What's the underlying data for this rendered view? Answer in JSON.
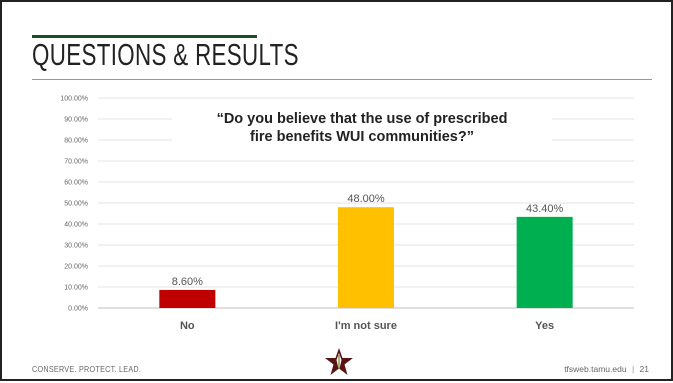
{
  "slide": {
    "title": "QUESTIONS & RESULTS",
    "footer_left": "CONSERVE. PROTECT. LEAD.",
    "footer_url": "tfsweb.tamu.edu",
    "footer_separator": "|",
    "page_number": "21"
  },
  "chart_data": {
    "type": "bar",
    "title": "“Do you believe that the use of prescribed fire benefits WUI communities?”",
    "title_lines": [
      "“Do you believe that the use of prescribed",
      "fire benefits WUI communities?”"
    ],
    "categories": [
      "No",
      "I'm not sure",
      "Yes"
    ],
    "values": [
      8.6,
      48.0,
      43.4
    ],
    "data_labels": [
      "8.60%",
      "48.00%",
      "43.40%"
    ],
    "colors": [
      "#c00000",
      "#ffc000",
      "#00b050"
    ],
    "ylim": [
      0,
      100
    ],
    "yticks": [
      "0.00%",
      "10.00%",
      "20.00%",
      "30.00%",
      "40.00%",
      "50.00%",
      "60.00%",
      "70.00%",
      "80.00%",
      "90.00%",
      "100.00%"
    ],
    "grid": true,
    "legend": "none"
  }
}
